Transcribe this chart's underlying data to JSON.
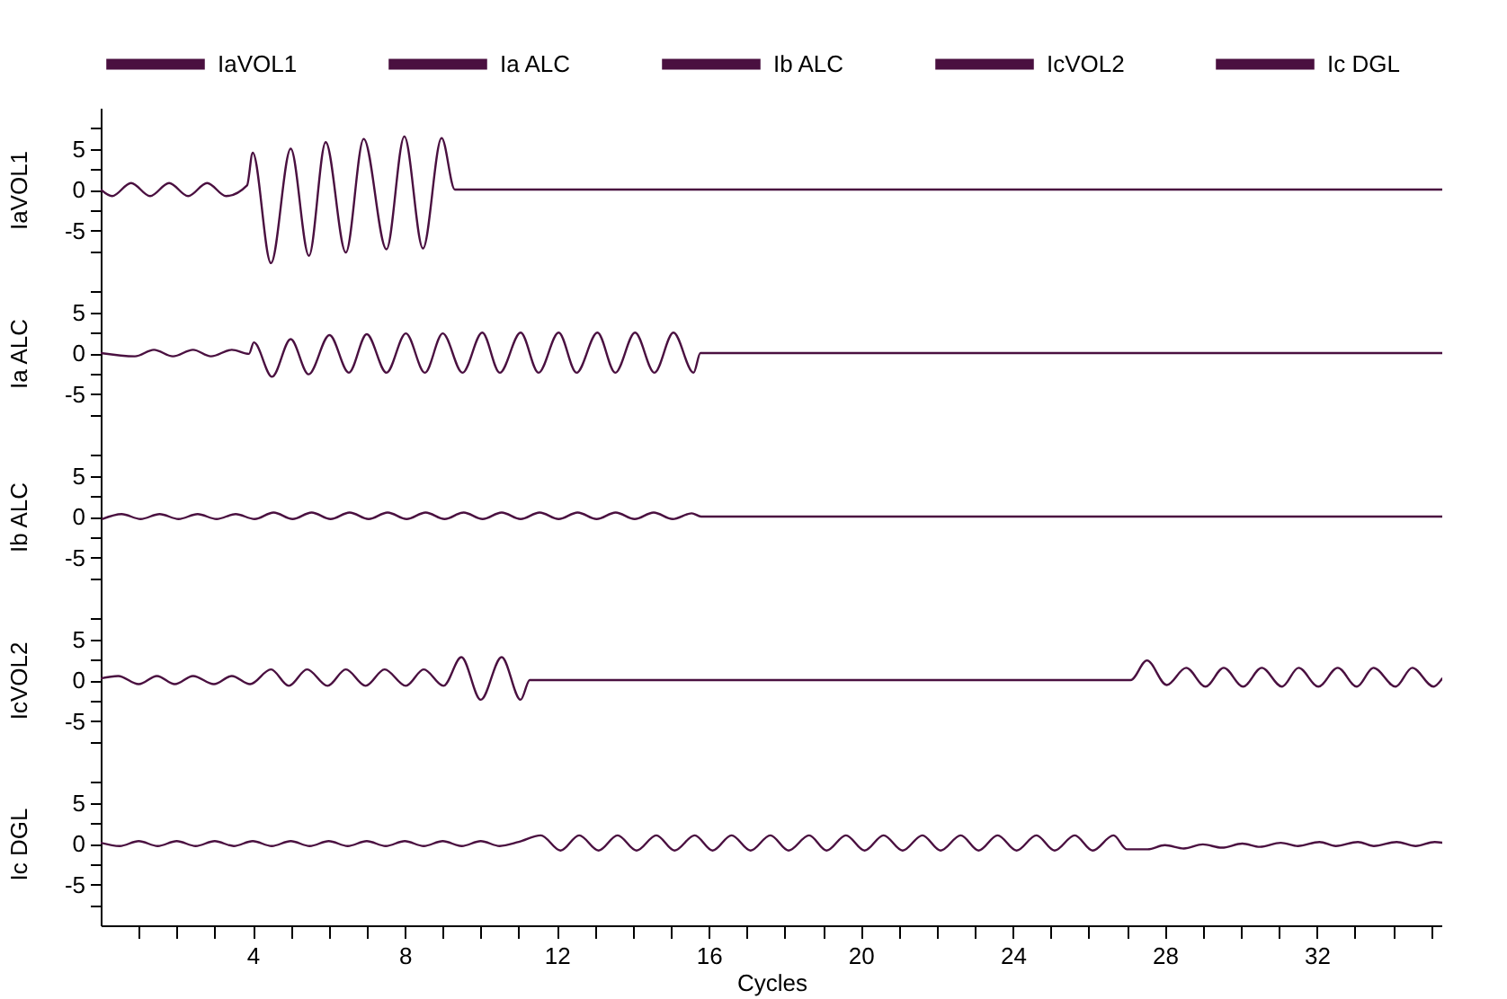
{
  "chart_data": [
    {
      "type": "line",
      "ylabel": "IaVOL1",
      "legend": "top",
      "tick_labels": "y",
      "xlim": [
        0,
        35.3
      ],
      "ylim": [
        -10,
        10
      ],
      "yticks": [
        {
          "value": -7.5,
          "label": null
        },
        -5,
        {
          "value": -2.5,
          "label": null
        },
        0,
        {
          "value": 2.5,
          "label": null
        },
        5,
        {
          "value": 7.5,
          "label": null
        }
      ],
      "series": [
        {
          "name": "IaVOL1",
          "color": "#4a1040",
          "x": [
            0,
            0.3,
            0.8,
            1.3,
            1.8,
            2.3,
            2.8,
            3.3,
            3.85,
            4.0,
            4.48,
            5.0,
            5.48,
            5.92,
            6.45,
            6.92,
            7.52,
            7.99,
            8.48,
            8.97,
            9.32,
            35.3
          ],
          "values": [
            0,
            -0.8,
            0.8,
            -0.8,
            0.8,
            -0.8,
            0.8,
            -0.8,
            0.5,
            4.5,
            -9.0,
            5.0,
            -8.1,
            5.8,
            -7.7,
            6.2,
            -7.3,
            6.5,
            -7.2,
            6.3,
            0,
            0
          ]
        }
      ]
    },
    {
      "type": "line",
      "ylabel": "Ia ALC",
      "legend": "top",
      "tick_labels": "y",
      "xlim": [
        0,
        35.3
      ],
      "ylim": [
        -10,
        10
      ],
      "yticks": [
        {
          "value": -7.5,
          "label": null
        },
        -5,
        {
          "value": -2.5,
          "label": null
        },
        0,
        {
          "value": 2.5,
          "label": null
        },
        5,
        {
          "value": 7.5,
          "label": null
        }
      ],
      "series": [
        {
          "name": "Ia ALC",
          "color": "#4a1040",
          "x": [
            0,
            0.9,
            1.4,
            1.9,
            2.43,
            2.9,
            3.45,
            3.9,
            4.03,
            4.51,
            5.0,
            5.47,
            6.02,
            6.53,
            7.0,
            7.52,
            8.03,
            8.53,
            9.0,
            9.52,
            10.04,
            10.5,
            11.05,
            11.52,
            12.05,
            12.52,
            13.07,
            13.54,
            14.06,
            14.57,
            15.07,
            15.6,
            15.78,
            35.3
          ],
          "values": [
            0,
            -0.4,
            0.4,
            -0.4,
            0.4,
            -0.4,
            0.4,
            -0.1,
            1.3,
            -2.9,
            1.7,
            -2.6,
            2.2,
            -2.4,
            2.3,
            -2.4,
            2.4,
            -2.4,
            2.4,
            -2.4,
            2.5,
            -2.4,
            2.5,
            -2.4,
            2.5,
            -2.4,
            2.5,
            -2.4,
            2.5,
            -2.4,
            2.5,
            -2.4,
            0,
            0
          ]
        }
      ]
    },
    {
      "type": "line",
      "ylabel": "Ib ALC",
      "legend": "top",
      "tick_labels": "y",
      "xlim": [
        0,
        35.3
      ],
      "ylim": [
        -10,
        10
      ],
      "yticks": [
        {
          "value": -7.5,
          "label": null
        },
        -5,
        {
          "value": -2.5,
          "label": null
        },
        0,
        {
          "value": 2.5,
          "label": null
        },
        5,
        {
          "value": 7.5,
          "label": null
        }
      ],
      "series": [
        {
          "name": "Ib ALC",
          "color": "#4a1040",
          "x": [
            0.05,
            0.55,
            1.05,
            1.55,
            2.05,
            2.55,
            3.05,
            3.55,
            4.05,
            4.55,
            5.05,
            5.55,
            6.05,
            6.55,
            7.05,
            7.55,
            8.05,
            8.55,
            9.05,
            9.55,
            10.05,
            10.55,
            11.05,
            11.55,
            12.05,
            12.55,
            13.05,
            13.55,
            14.05,
            14.55,
            15.05,
            15.55,
            15.8,
            35.3
          ],
          "values": [
            -0.3,
            0.3,
            -0.3,
            0.3,
            -0.3,
            0.3,
            -0.3,
            0.3,
            -0.3,
            0.5,
            -0.3,
            0.5,
            -0.3,
            0.5,
            -0.3,
            0.5,
            -0.3,
            0.5,
            -0.3,
            0.5,
            -0.3,
            0.5,
            -0.3,
            0.5,
            -0.3,
            0.5,
            -0.3,
            0.5,
            -0.3,
            0.5,
            -0.3,
            0.4,
            0,
            0
          ]
        }
      ]
    },
    {
      "type": "line",
      "ylabel": "IcVOL2",
      "legend": "top",
      "tick_labels": "y",
      "xlim": [
        0,
        35.3
      ],
      "ylim": [
        -10,
        10
      ],
      "yticks": [
        {
          "value": -7.5,
          "label": null
        },
        -5,
        {
          "value": -2.5,
          "label": null
        },
        0,
        {
          "value": 2.5,
          "label": null
        },
        5,
        {
          "value": 7.5,
          "label": null
        }
      ],
      "series": [
        {
          "name": "IcVOL2",
          "color": "#4a1040",
          "x": [
            0,
            0.46,
            1.0,
            1.48,
            1.95,
            2.43,
            2.98,
            3.45,
            3.93,
            4.48,
            4.95,
            5.43,
            5.97,
            6.45,
            6.97,
            7.47,
            8.03,
            8.5,
            9.02,
            9.49,
            10.0,
            10.55,
            11.05,
            11.29,
            27.1,
            27.53,
            28.05,
            28.56,
            29.07,
            29.55,
            30.06,
            30.55,
            31.08,
            31.52,
            32.04,
            32.55,
            33.05,
            33.49,
            34.07,
            34.51,
            35.07,
            35.3
          ],
          "values": [
            0.2,
            0.5,
            -0.5,
            0.5,
            -0.5,
            0.5,
            -0.5,
            0.5,
            -0.5,
            1.3,
            -0.7,
            1.3,
            -0.7,
            1.3,
            -0.7,
            1.3,
            -0.7,
            1.3,
            -0.7,
            2.8,
            -2.4,
            2.8,
            -2.4,
            0,
            0,
            2.4,
            -0.6,
            1.5,
            -0.8,
            1.5,
            -0.8,
            1.5,
            -0.8,
            1.5,
            -0.8,
            1.5,
            -0.8,
            1.5,
            -0.8,
            1.5,
            -0.8,
            0.2
          ]
        }
      ]
    },
    {
      "type": "line",
      "ylabel": "Ic DGL",
      "xlabel": "Cycles",
      "legend": "top",
      "xlim": [
        0,
        35.3
      ],
      "ylim": [
        -10,
        10
      ],
      "yticks": [
        {
          "value": -7.5,
          "label": null
        },
        -5,
        {
          "value": -2.5,
          "label": null
        },
        0,
        {
          "value": 2.5,
          "label": null
        },
        5,
        {
          "value": 7.5,
          "label": null
        }
      ],
      "xticks": [
        {
          "value": 1,
          "label": null
        },
        {
          "value": 2,
          "label": null
        },
        {
          "value": 3,
          "label": null
        },
        4,
        {
          "value": 5,
          "label": null
        },
        {
          "value": 6,
          "label": null
        },
        {
          "value": 7,
          "label": null
        },
        8,
        {
          "value": 9,
          "label": null
        },
        {
          "value": 10,
          "label": null
        },
        {
          "value": 11,
          "label": null
        },
        12,
        {
          "value": 13,
          "label": null
        },
        {
          "value": 14,
          "label": null
        },
        {
          "value": 15,
          "label": null
        },
        16,
        {
          "value": 17,
          "label": null
        },
        {
          "value": 18,
          "label": null
        },
        {
          "value": 19,
          "label": null
        },
        20,
        {
          "value": 21,
          "label": null
        },
        {
          "value": 22,
          "label": null
        },
        {
          "value": 23,
          "label": null
        },
        24,
        {
          "value": 25,
          "label": null
        },
        {
          "value": 26,
          "label": null
        },
        {
          "value": 27,
          "label": null
        },
        28,
        {
          "value": 29,
          "label": null
        },
        {
          "value": 30,
          "label": null
        },
        {
          "value": 31,
          "label": null
        },
        32,
        {
          "value": 33,
          "label": null
        },
        {
          "value": 34,
          "label": null
        },
        {
          "value": 35,
          "label": null
        }
      ],
      "series": [
        {
          "name": "Ic DGL",
          "color": "#4a1040",
          "x": [
            0,
            0.5,
            1,
            1.5,
            2,
            2.5,
            3,
            3.5,
            4,
            4.5,
            5,
            5.5,
            6,
            6.5,
            7,
            7.5,
            8,
            8.5,
            9,
            9.5,
            10,
            10.5,
            11,
            11.58,
            12.1,
            12.59,
            13.1,
            13.6,
            14.1,
            14.62,
            15.1,
            15.63,
            16.1,
            16.6,
            17.1,
            17.62,
            18.1,
            18.64,
            19.1,
            19.61,
            20.1,
            20.6,
            21.1,
            21.62,
            22.1,
            22.63,
            23.1,
            23.6,
            24.1,
            24.62,
            25.1,
            25.63,
            26.1,
            26.65,
            27.0,
            27.55,
            28.0,
            28.5,
            29.0,
            29.5,
            30.04,
            30.5,
            31.05,
            31.5,
            32.07,
            32.5,
            33.08,
            33.5,
            34.1,
            34.6,
            35.1,
            35.3
          ],
          "values": [
            0.1,
            -0.3,
            0.3,
            -0.3,
            0.3,
            -0.3,
            0.3,
            -0.3,
            0.3,
            -0.3,
            0.3,
            -0.3,
            0.3,
            -0.3,
            0.3,
            -0.3,
            0.3,
            -0.3,
            0.3,
            -0.3,
            0.3,
            -0.3,
            0.2,
            1.0,
            -0.85,
            1.0,
            -0.85,
            1.0,
            -0.85,
            1.0,
            -0.85,
            1.0,
            -0.85,
            1.0,
            -0.85,
            1.0,
            -0.85,
            1.0,
            -0.85,
            1.0,
            -0.85,
            1.0,
            -0.85,
            1.0,
            -0.85,
            1.0,
            -0.85,
            1.0,
            -0.85,
            1.0,
            -0.85,
            1.0,
            -0.85,
            1.0,
            -0.7,
            -0.7,
            -0.2,
            -0.6,
            -0.1,
            -0.5,
            0,
            -0.4,
            0.1,
            -0.3,
            0.2,
            -0.3,
            0.2,
            -0.3,
            0.2,
            -0.3,
            0.2,
            0.1
          ]
        }
      ]
    }
  ]
}
